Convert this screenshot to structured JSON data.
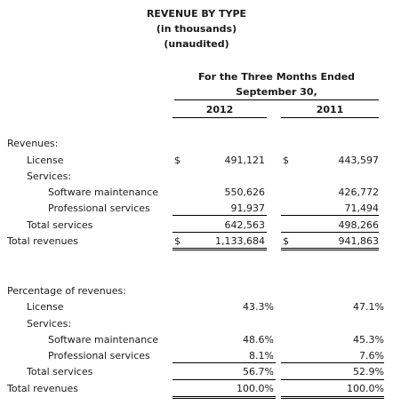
{
  "header": {
    "title": "REVENUE BY TYPE",
    "subtitle1": "(in thousands)",
    "subtitle2": "(unaudited)",
    "period_line1": "For the Three Months Ended",
    "period_line2": "September 30,",
    "col_2012": "2012",
    "col_2011": "2011"
  },
  "revenues": {
    "heading": "Revenues:",
    "license_label": "License",
    "license_cur_2012": "$",
    "license_2012": "491,121",
    "license_cur_2011": "$",
    "license_2011": "443,597",
    "services_label": "Services:",
    "sw_maint_label": "Software maintenance",
    "sw_maint_2012": "550,626",
    "sw_maint_2011": "426,772",
    "prof_services_label": "Professional services",
    "prof_services_2012": "91,937",
    "prof_services_2011": "71,494",
    "total_services_label": "Total services",
    "total_services_2012": "642,563",
    "total_services_2011": "498,266",
    "total_revenues_label": "Total revenues",
    "total_cur_2012": "$",
    "total_revenues_2012": "1,133,684",
    "total_cur_2011": "$",
    "total_revenues_2011": "941,863"
  },
  "percentage": {
    "heading": "Percentage of revenues:",
    "license_label": "License",
    "license_2012": "43.3%",
    "license_2011": "47.1%",
    "services_label": "Services:",
    "sw_maint_label": "Software maintenance",
    "sw_maint_2012": "48.6%",
    "sw_maint_2011": "45.3%",
    "prof_services_label": "Professional services",
    "prof_services_2012": "8.1%",
    "prof_services_2011": "7.6%",
    "total_services_label": "Total services",
    "total_services_2012": "56.7%",
    "total_services_2011": "52.9%",
    "total_revenues_label": "Total revenues",
    "total_revenues_2012": "100.0%",
    "total_revenues_2011": "100.0%"
  }
}
